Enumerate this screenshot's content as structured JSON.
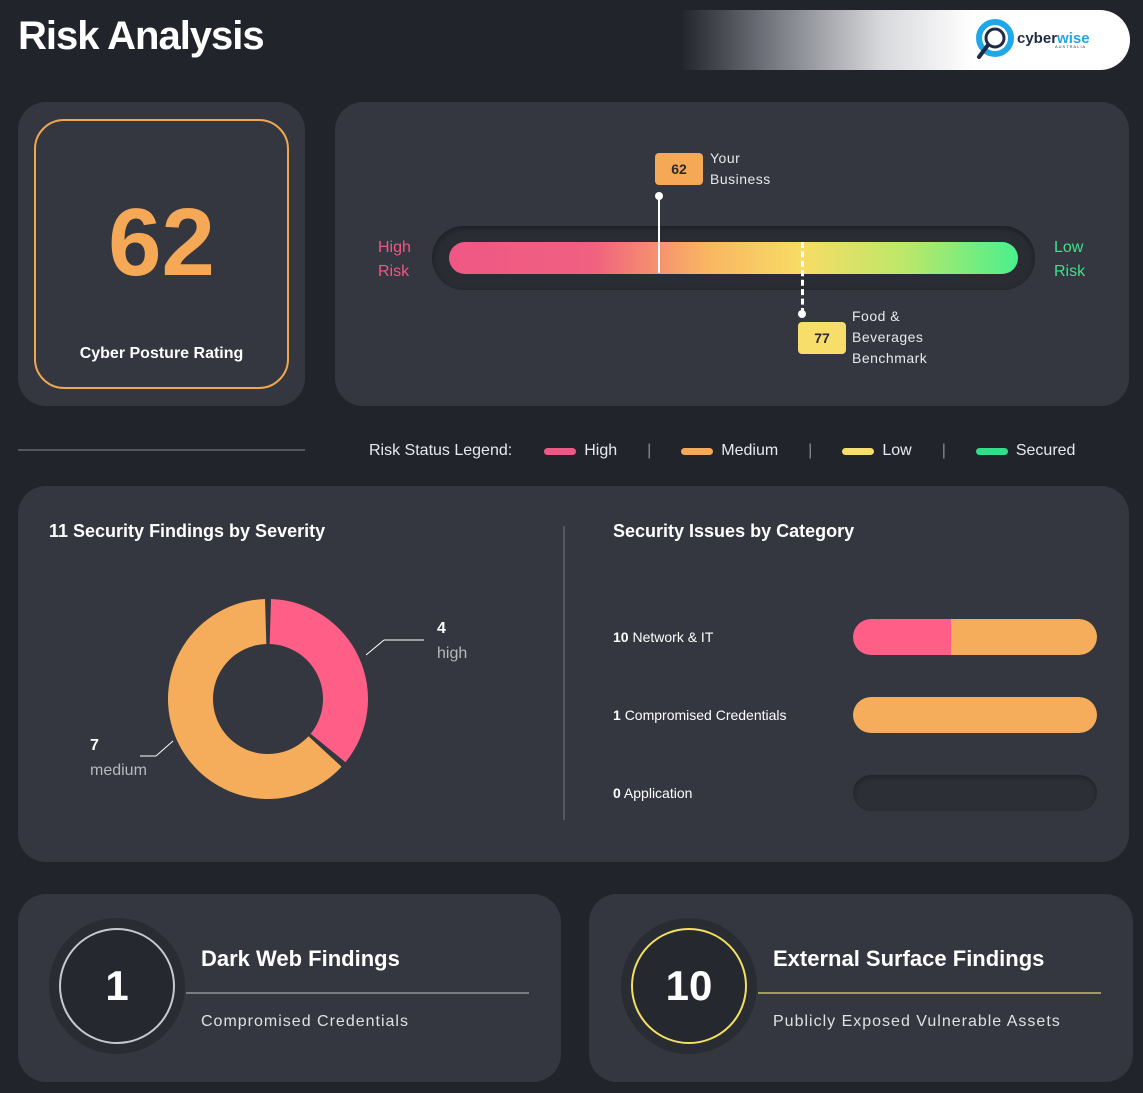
{
  "header": {
    "title": "Risk Analysis",
    "logo_text_a": "cyber",
    "logo_text_b": "wise",
    "logo_subtext": "AUSTRALIA"
  },
  "score_card": {
    "value": "62",
    "label": "Cyber Posture Rating"
  },
  "gauge": {
    "high_label_1": "High",
    "high_label_2": "Risk",
    "low_label_1": "Low",
    "low_label_2": "Risk",
    "your_value": "62",
    "your_label_1": "Your",
    "your_label_2": "Business",
    "bench_value": "77",
    "bench_label_1": "Food &",
    "bench_label_2": "Beverages",
    "bench_label_3": "Benchmark"
  },
  "legend": {
    "title": "Risk Status Legend:",
    "separator": "|",
    "items": [
      {
        "label": "High",
        "color": "#ef5885"
      },
      {
        "label": "Medium",
        "color": "#f5a855"
      },
      {
        "label": "Low",
        "color": "#f7de6a"
      },
      {
        "label": "Secured",
        "color": "#2fe08a"
      }
    ]
  },
  "severity": {
    "title": "11 Security Findings by Severity",
    "high_count": "4",
    "high_label": "high",
    "medium_count": "7",
    "medium_label": "medium"
  },
  "categories": {
    "title": "Security Issues by Category",
    "rows": [
      {
        "count": "10",
        "label": "Network & IT"
      },
      {
        "count": "1",
        "label": "Compromised Credentials"
      },
      {
        "count": "0",
        "label": "Application"
      }
    ]
  },
  "dark_web": {
    "value": "1",
    "title": "Dark Web Findings",
    "subtitle": "Compromised Credentials"
  },
  "external_surface": {
    "value": "10",
    "title": "External Surface Findings",
    "subtitle": "Publicly Exposed Vulnerable Assets"
  },
  "chart_data": {
    "type": "pie",
    "categories": [
      "high",
      "medium"
    ],
    "values": [
      4,
      7
    ],
    "title": "11 Security Findings by Severity",
    "colors": [
      "#ff5f87",
      "#f5ad5b"
    ]
  }
}
